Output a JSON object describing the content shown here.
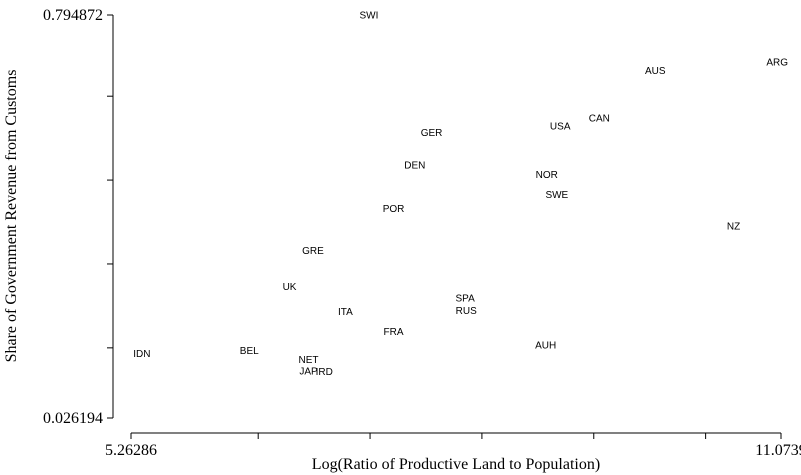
{
  "chart_data": {
    "type": "scatter",
    "title": "",
    "xlabel": "Log(Ratio of Productive Land to Population)",
    "ylabel": "Share of Government Revenue from Customs",
    "xlim": [
      5.26286,
      11.0739
    ],
    "ylim": [
      0.026194,
      0.794872
    ],
    "x_ticks": [
      5.26286,
      6.4,
      7.4,
      8.4,
      9.4,
      10.4,
      11.0739
    ],
    "x_tick_labels": [
      "5.26286",
      "",
      "",
      "",
      "",
      "",
      "11.0739"
    ],
    "y_ticks": [
      0.026194,
      0.16,
      0.32,
      0.48,
      0.64,
      0.794872
    ],
    "y_tick_labels": [
      "0.026194",
      "",
      "",
      "",
      "",
      "0.794872"
    ],
    "points": [
      {
        "label": "SWI",
        "x": 7.39,
        "y": 0.796
      },
      {
        "label": "ARG",
        "x": 11.04,
        "y": 0.706
      },
      {
        "label": "AUS",
        "x": 9.95,
        "y": 0.69
      },
      {
        "label": "CAN",
        "x": 9.45,
        "y": 0.599
      },
      {
        "label": "USA",
        "x": 9.1,
        "y": 0.584
      },
      {
        "label": "GER",
        "x": 7.95,
        "y": 0.572
      },
      {
        "label": "DEN",
        "x": 7.8,
        "y": 0.51
      },
      {
        "label": "NOR",
        "x": 8.98,
        "y": 0.492
      },
      {
        "label": "SWE",
        "x": 9.07,
        "y": 0.453
      },
      {
        "label": "POR",
        "x": 7.61,
        "y": 0.427
      },
      {
        "label": "NZ",
        "x": 10.65,
        "y": 0.393
      },
      {
        "label": "GRE",
        "x": 6.89,
        "y": 0.347
      },
      {
        "label": "UK",
        "x": 6.68,
        "y": 0.278
      },
      {
        "label": "SPA",
        "x": 8.25,
        "y": 0.256
      },
      {
        "label": "RUS",
        "x": 8.26,
        "y": 0.232
      },
      {
        "label": "ITA",
        "x": 7.18,
        "y": 0.23
      },
      {
        "label": "FRA",
        "x": 7.61,
        "y": 0.192
      },
      {
        "label": "AUH",
        "x": 8.97,
        "y": 0.166
      },
      {
        "label": "BEL",
        "x": 6.32,
        "y": 0.156
      },
      {
        "label": "IDN",
        "x": 5.36,
        "y": 0.15
      },
      {
        "label": "NET",
        "x": 6.85,
        "y": 0.139
      },
      {
        "label": "JAP",
        "x": 6.85,
        "y": 0.117
      },
      {
        "label": "IRD",
        "x": 6.99,
        "y": 0.116
      }
    ]
  }
}
